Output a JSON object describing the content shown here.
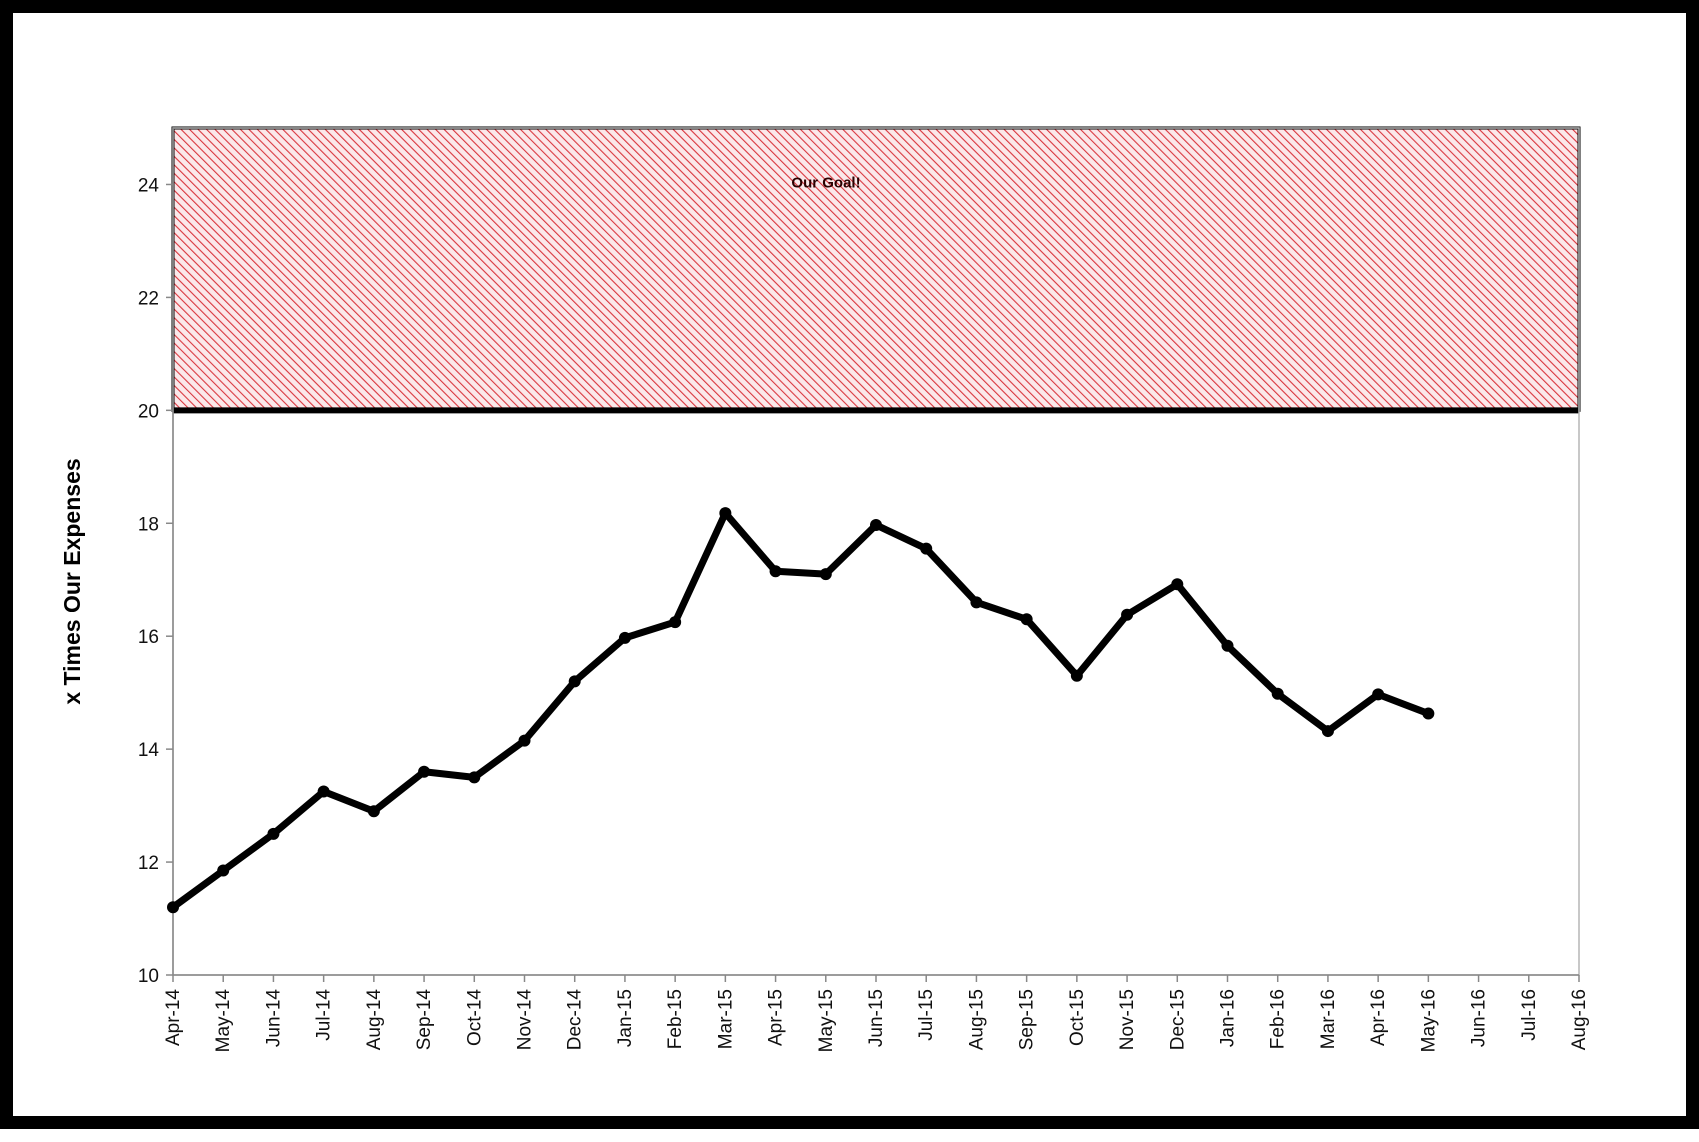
{
  "chart_data": {
    "type": "line",
    "title": "",
    "xlabel": "",
    "ylabel": "x Times Our Expenses",
    "ylim": [
      10,
      25
    ],
    "yticks": [
      10,
      12,
      14,
      16,
      18,
      20,
      22,
      24
    ],
    "grid": false,
    "categories": [
      "Apr-14",
      "May-14",
      "Jun-14",
      "Jul-14",
      "Aug-14",
      "Sep-14",
      "Oct-14",
      "Nov-14",
      "Dec-14",
      "Jan-15",
      "Feb-15",
      "Mar-15",
      "Apr-15",
      "May-15",
      "Jun-15",
      "Jul-15",
      "Aug-15",
      "Sep-15",
      "Oct-15",
      "Nov-15",
      "Dec-15",
      "Jan-16",
      "Feb-16",
      "Mar-16",
      "Apr-16",
      "May-16",
      "Jun-16",
      "Jul-16",
      "Aug-16"
    ],
    "series": [
      {
        "values": [
          11.2,
          11.85,
          12.5,
          13.25,
          12.9,
          13.6,
          13.5,
          14.15,
          15.2,
          15.97,
          16.25,
          18.18,
          17.15,
          17.1,
          17.97,
          17.55,
          16.6,
          16.3,
          15.3,
          16.38,
          16.92,
          15.83,
          14.98,
          14.32,
          14.97,
          14.63,
          null,
          null,
          null
        ],
        "color": "#000000"
      }
    ],
    "goal_band": {
      "label": "Our Goal!",
      "ymin": 20,
      "ymax": 25,
      "color": "#d9363e"
    }
  }
}
